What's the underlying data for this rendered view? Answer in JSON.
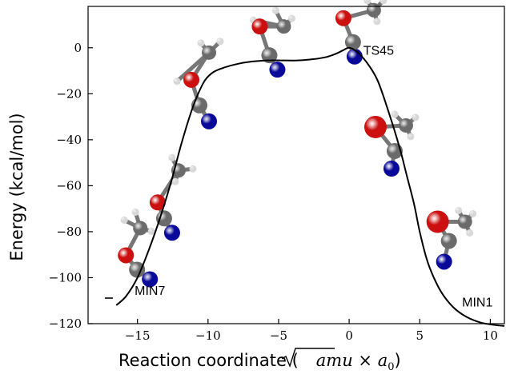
{
  "chart_data": {
    "type": "line",
    "title": "",
    "xlabel_text": "Reaction coordinate (",
    "xlabel_sqrt": "amu",
    "xlabel_times": " × ",
    "xlabel_a": "a",
    "xlabel_sub": "0",
    "xlabel_close": ")",
    "ylabel": "Energy (kcal/mol)",
    "xlim": [
      -18.5,
      11
    ],
    "ylim": [
      -120,
      18
    ],
    "xticks": [
      -15,
      -10,
      -5,
      0,
      5,
      10
    ],
    "yticks": [
      0,
      -20,
      -40,
      -60,
      -80,
      -100,
      -120
    ],
    "grid": false,
    "series": [
      {
        "x": [
          -16.5,
          -15.8,
          -15.0,
          -14.2,
          -13.4,
          -12.6,
          -11.9,
          -11.2,
          -10.7,
          -10.2,
          -9.6,
          -8.8,
          -7.9,
          -6.9,
          -5.8,
          -4.8,
          -3.7,
          -2.6,
          -1.6,
          -0.9,
          -0.4,
          0.0,
          0.5,
          1.2,
          2.0,
          2.8,
          3.6,
          4.1,
          4.6,
          5.0,
          5.5,
          6.0,
          6.6,
          7.4,
          8.3,
          9.3,
          10.2,
          11.0
        ],
        "y": [
          -112,
          -108,
          -100,
          -88,
          -74,
          -58,
          -42,
          -28,
          -20,
          -14,
          -10.5,
          -8.5,
          -7,
          -6,
          -5.5,
          -5.5,
          -5.5,
          -5,
          -4,
          -2.5,
          -1,
          0,
          -1.5,
          -6,
          -14,
          -28,
          -44,
          -56,
          -68,
          -80,
          -92,
          -100,
          -107,
          -113,
          -117,
          -119.5,
          -120.5,
          -121
        ]
      }
    ],
    "annotations": [
      {
        "text": "TS45",
        "x": 1.0,
        "y": -3
      },
      {
        "text": "MIN7",
        "x": -15.2,
        "y": -107.5
      },
      {
        "text": "MIN1",
        "x": 8.0,
        "y": -112.5
      }
    ],
    "molecules": [
      {
        "x": -14.8,
        "y": -100
      },
      {
        "x": -13.0,
        "y": -77
      },
      {
        "x": -10.5,
        "y": -32
      },
      {
        "x": -5.2,
        "y": -13
      },
      {
        "x": 0.5,
        "y": -8
      },
      {
        "x": 3.0,
        "y": -47
      },
      {
        "x": 6.5,
        "y": -100
      }
    ],
    "colors": {
      "line": "#000000",
      "oxygen": "#cc1010",
      "carbon": "#6b6b6b",
      "nitrogen": "#0a0a9a",
      "hydrogen": "#d8d8d8"
    }
  }
}
